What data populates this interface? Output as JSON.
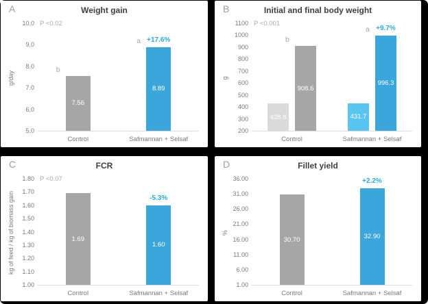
{
  "figure": {
    "background": "#000000",
    "panel_background": "#ffffff"
  },
  "colors": {
    "bar_gray": "#A6A6A6",
    "bar_light_gray": "#DADADA",
    "bar_blue": "#3BA6DC",
    "bar_light_blue": "#58C4EF",
    "change_label": "#29ABE2",
    "value_label": "#FFFFFF",
    "axis_text": "#7A7A7A",
    "muted_text": "#ABABAB",
    "title_text": "#3F3F3F",
    "baseline": "#DDDDDD"
  },
  "chart_data": [
    {
      "type": "bar",
      "letter": "A",
      "title": "Weight gain",
      "p_label": "P <0.02",
      "ylabel": "g/day",
      "ylim": [
        5.0,
        10.0
      ],
      "yticks": [
        "5.0",
        "6.0",
        "7.0",
        "8.0",
        "9.0",
        "10.0"
      ],
      "categories": [
        "Control",
        "Safmannan + Selsaf"
      ],
      "grid": false,
      "legend": "none",
      "groups": [
        {
          "category": "Control",
          "bars": [
            {
              "value": 7.56,
              "label": "7.56",
              "color": "bar_gray",
              "sig": "b"
            }
          ]
        },
        {
          "category": "Safmannan + Selsaf",
          "bars": [
            {
              "value": 8.89,
              "label": "8.89",
              "color": "bar_blue",
              "sig": "a",
              "change": "+17.6%"
            }
          ]
        }
      ]
    },
    {
      "type": "bar",
      "letter": "B",
      "title": "Initial and final body weight",
      "p_label": "P <0.001",
      "ylabel": "g",
      "ylim": [
        200,
        1100
      ],
      "yticks": [
        "200",
        "300",
        "400",
        "500",
        "600",
        "700",
        "800",
        "900",
        "1000",
        "1100"
      ],
      "categories": [
        "Control",
        "Safmannan + Selsaf"
      ],
      "grid": false,
      "legend": "none",
      "groups": [
        {
          "category": "Control",
          "bars": [
            {
              "role": "initial",
              "value": 428.8,
              "label": "428.8",
              "color": "bar_light_gray"
            },
            {
              "role": "final",
              "value": 908.6,
              "label": "908.6",
              "color": "bar_gray",
              "sig": "b"
            }
          ]
        },
        {
          "category": "Safmannan + Selsaf",
          "bars": [
            {
              "role": "initial",
              "value": 431.7,
              "label": "431.7",
              "color": "bar_light_blue"
            },
            {
              "role": "final",
              "value": 996.3,
              "label": "996.3",
              "color": "bar_blue",
              "sig": "a",
              "change": "+9.7%"
            }
          ]
        }
      ]
    },
    {
      "type": "bar",
      "letter": "C",
      "title": "FCR",
      "p_label": "P <0.07",
      "ylabel": "kg of feed / kg of biomass gain",
      "ylim": [
        1.0,
        1.8
      ],
      "yticks": [
        "1.00",
        "1.10",
        "1.20",
        "1.30",
        "1.40",
        "1.50",
        "1.60",
        "1.70",
        "1.80"
      ],
      "categories": [
        "Control",
        "Safmannan + Selsaf"
      ],
      "grid": false,
      "legend": "none",
      "groups": [
        {
          "category": "Control",
          "bars": [
            {
              "value": 1.69,
              "label": "1.69",
              "color": "bar_gray"
            }
          ]
        },
        {
          "category": "Safmannan + Selsaf",
          "bars": [
            {
              "value": 1.6,
              "label": "1.60",
              "color": "bar_blue",
              "change": "-5.3%"
            }
          ]
        }
      ]
    },
    {
      "type": "bar",
      "letter": "D",
      "title": "Fillet yield",
      "p_label": "",
      "ylabel": "%",
      "ylim": [
        1.0,
        36.0
      ],
      "yticks": [
        "1.00",
        "6.00",
        "11.00",
        "16.00",
        "21.00",
        "26.00",
        "31.00",
        "36.00"
      ],
      "categories": [
        "Control",
        "Safmannan + Selsaf"
      ],
      "grid": false,
      "legend": "none",
      "groups": [
        {
          "category": "Control",
          "bars": [
            {
              "value": 30.7,
              "label": "30.70",
              "color": "bar_gray"
            }
          ]
        },
        {
          "category": "Safmannan + Selsaf",
          "bars": [
            {
              "value": 32.9,
              "label": "32.90",
              "color": "bar_blue",
              "change": "+2.2%"
            }
          ]
        }
      ]
    }
  ]
}
